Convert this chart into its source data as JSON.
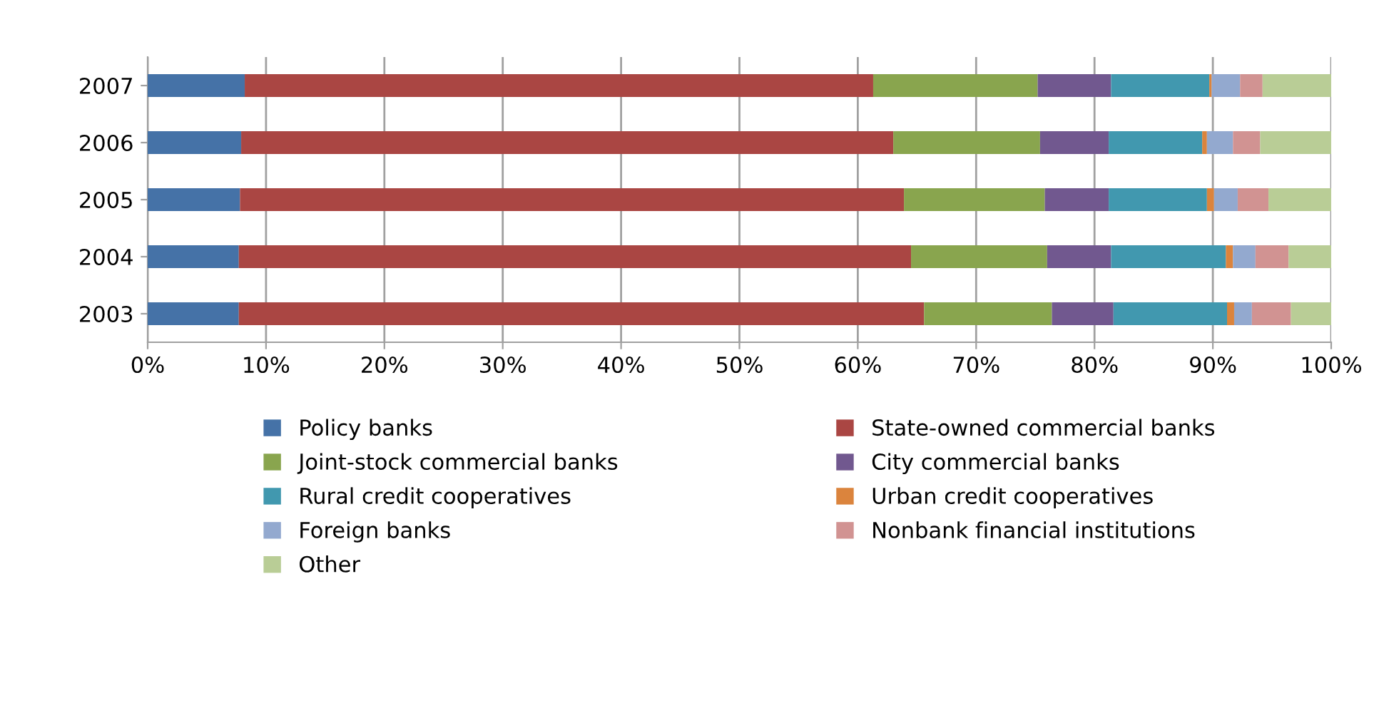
{
  "chart_data": {
    "type": "bar",
    "orientation": "horizontal",
    "stacked": true,
    "categories": [
      "2007",
      "2006",
      "2005",
      "2004",
      "2003"
    ],
    "xlim": [
      0,
      100
    ],
    "xticks": [
      {
        "value": 0,
        "label": "0%"
      },
      {
        "value": 10,
        "label": "10%"
      },
      {
        "value": 20,
        "label": "20%"
      },
      {
        "value": 30,
        "label": "30%"
      },
      {
        "value": 40,
        "label": "40%"
      },
      {
        "value": 50,
        "label": "50%"
      },
      {
        "value": 60,
        "label": "60%"
      },
      {
        "value": 70,
        "label": "70%"
      },
      {
        "value": 80,
        "label": "80%"
      },
      {
        "value": 90,
        "label": "90%"
      },
      {
        "value": 100,
        "label": "100%"
      }
    ],
    "grid": "x",
    "legend": "bottom",
    "series": [
      {
        "name": "Policy banks",
        "color": "#4572a7",
        "values": [
          8.2,
          7.9,
          7.8,
          7.7,
          7.7
        ]
      },
      {
        "name": "State-owned commercial banks",
        "color": "#aa4643",
        "values": [
          53.1,
          55.1,
          56.1,
          56.8,
          57.9
        ]
      },
      {
        "name": "Joint-stock commercial banks",
        "color": "#89a54e",
        "values": [
          13.9,
          12.4,
          11.9,
          11.5,
          10.8
        ]
      },
      {
        "name": "City commercial banks",
        "color": "#71588f",
        "values": [
          6.2,
          5.8,
          5.4,
          5.4,
          5.2
        ]
      },
      {
        "name": "Rural credit cooperatives",
        "color": "#4198af",
        "values": [
          8.3,
          7.9,
          8.3,
          9.7,
          9.6
        ]
      },
      {
        "name": "Urban credit cooperatives",
        "color": "#db843d",
        "values": [
          0.2,
          0.4,
          0.6,
          0.6,
          0.6
        ]
      },
      {
        "name": "Foreign banks",
        "color": "#93a9cf",
        "values": [
          2.4,
          2.2,
          2.0,
          1.9,
          1.5
        ]
      },
      {
        "name": "Nonbank financial institutions",
        "color": "#d19392",
        "values": [
          1.9,
          2.3,
          2.6,
          2.8,
          3.3
        ]
      },
      {
        "name": "Other",
        "color": "#b9cd96",
        "values": [
          5.8,
          6.0,
          5.3,
          3.6,
          3.4
        ]
      }
    ]
  }
}
